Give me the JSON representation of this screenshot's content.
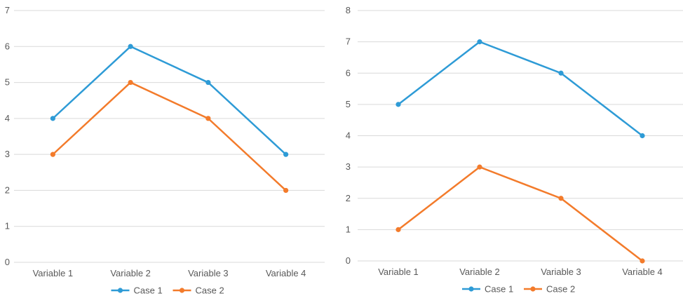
{
  "chart_data": [
    {
      "type": "line",
      "categories": [
        "Variable 1",
        "Variable 2",
        "Variable 3",
        "Variable 4"
      ],
      "series": [
        {
          "name": "Case 1",
          "values": [
            4,
            6,
            5,
            3
          ],
          "color": "#2E9BD6"
        },
        {
          "name": "Case 2",
          "values": [
            3,
            5,
            4,
            2
          ],
          "color": "#F37B2B"
        }
      ],
      "yticks": [
        "0",
        "1",
        "2",
        "3",
        "4",
        "5",
        "6",
        "7"
      ],
      "ylim": [
        0,
        7
      ],
      "grid": true,
      "legend": "bottom-center"
    },
    {
      "type": "line",
      "categories": [
        "Variable 1",
        "Variable 2",
        "Variable 3",
        "Variable 4"
      ],
      "series": [
        {
          "name": "Case 1",
          "values": [
            5,
            7,
            6,
            4
          ],
          "color": "#2E9BD6"
        },
        {
          "name": "Case 2",
          "values": [
            1,
            3,
            2,
            0
          ],
          "color": "#F37B2B"
        }
      ],
      "yticks": [
        "0",
        "1",
        "2",
        "3",
        "4",
        "5",
        "6",
        "7",
        "8"
      ],
      "ylim": [
        0,
        8
      ],
      "grid": true,
      "legend": "bottom-center"
    }
  ],
  "colors": {
    "gridline": "#D9D9D9",
    "text": "#595959"
  }
}
